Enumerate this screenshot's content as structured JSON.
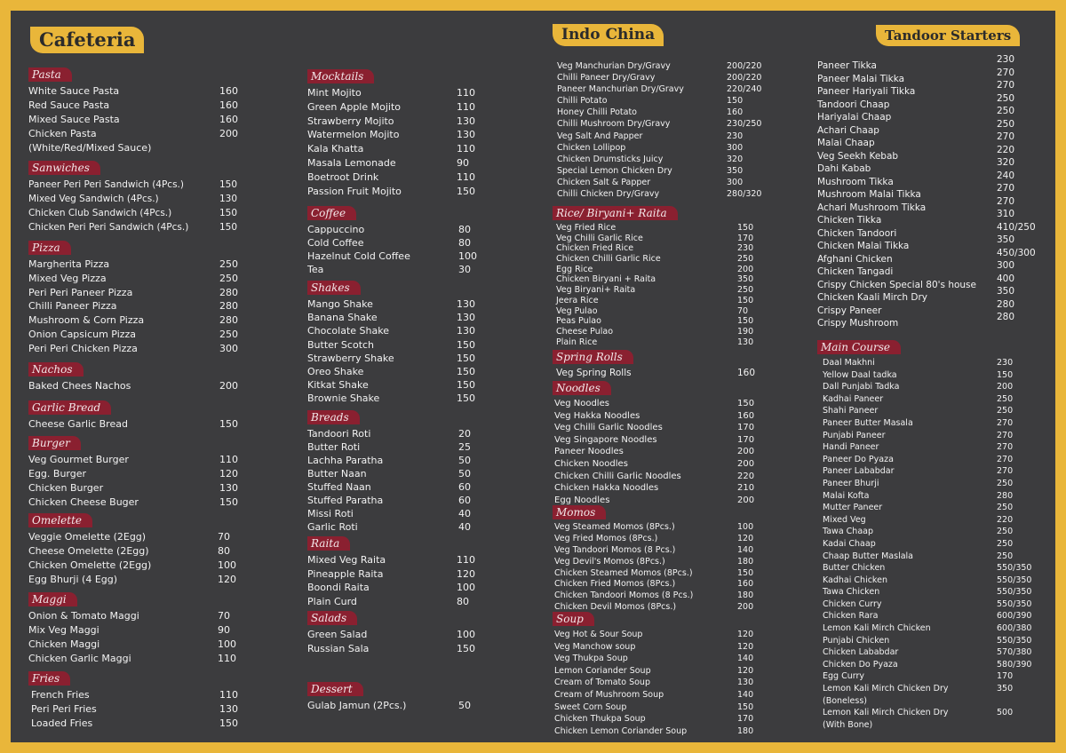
{
  "banners": {
    "cafeteria": "Cafeteria",
    "indo_china": "Indo China",
    "tandoor_starters": "Tandoor Starters"
  },
  "col1": {
    "pasta": {
      "title": "Pasta",
      "items": [
        {
          "name": "White Sauce Pasta",
          "price": "160"
        },
        {
          "name": "Red Sauce Pasta",
          "price": "160"
        },
        {
          "name": "Mixed Sauce Pasta",
          "price": "160"
        },
        {
          "name": "Chicken Pasta",
          "price": "200"
        }
      ],
      "note": "(White/Red/Mixed Sauce)"
    },
    "sandwiches": {
      "title": "Sanwiches",
      "items": [
        {
          "name": "Paneer Peri Peri Sandwich (4Pcs.)",
          "price": "150"
        },
        {
          "name": "Mixed Veg Sandwich (4Pcs.)",
          "price": "130"
        },
        {
          "name": "Chicken Club Sandwich (4Pcs.)",
          "price": "150"
        },
        {
          "name": "Chicken Peri Peri Sandwich (4Pcs.)",
          "price": "150"
        }
      ]
    },
    "pizza": {
      "title": "Pizza",
      "items": [
        {
          "name": "Margherita Pizza",
          "price": "250"
        },
        {
          "name": "Mixed Veg Pizza",
          "price": "250"
        },
        {
          "name": "Peri Peri Paneer Pizza",
          "price": "280"
        },
        {
          "name": "Chilli Paneer Pizza",
          "price": "280"
        },
        {
          "name": "Mushroom & Corn Pizza",
          "price": "280"
        },
        {
          "name": "Onion Capsicum Pizza",
          "price": "250"
        },
        {
          "name": "Peri Peri Chicken Pizza",
          "price": "300"
        }
      ]
    },
    "nachos": {
      "title": "Nachos",
      "items": [
        {
          "name": "Baked Chees Nachos",
          "price": "200"
        }
      ]
    },
    "garlic": {
      "title": "Garlic Bread",
      "items": [
        {
          "name": "Cheese Garlic Bread",
          "price": "150"
        }
      ]
    },
    "burger": {
      "title": "Burger",
      "items": [
        {
          "name": "Veg Gourmet Burger",
          "price": "110"
        },
        {
          "name": "Egg. Burger",
          "price": "120"
        },
        {
          "name": "Chicken Burger",
          "price": "130"
        },
        {
          "name": "Chicken Cheese Buger",
          "price": "150"
        }
      ]
    },
    "omelette": {
      "title": "Omelette",
      "items": [
        {
          "name": "Veggie Omelette (2Egg)",
          "price": "70"
        },
        {
          "name": "Cheese Omelette (2Egg)",
          "price": "80"
        },
        {
          "name": "Chicken Omelette (2Egg)",
          "price": "100"
        },
        {
          "name": "Egg Bhurji (4 Egg)",
          "price": "120"
        }
      ]
    },
    "maggi": {
      "title": "Maggi",
      "items": [
        {
          "name": "Onion & Tomato Maggi",
          "price": "70"
        },
        {
          "name": "Mix Veg Maggi",
          "price": "90"
        },
        {
          "name": "Chicken Maggi",
          "price": "100"
        },
        {
          "name": "Chicken Garlic Maggi",
          "price": "110"
        }
      ]
    },
    "fries": {
      "title": "Fries",
      "items": [
        {
          "name": "French Fries",
          "price": "110"
        },
        {
          "name": "Peri Peri Fries",
          "price": "130"
        },
        {
          "name": "Loaded Fries",
          "price": "150"
        }
      ]
    }
  },
  "col2": {
    "mocktails": {
      "title": "Mocktails",
      "items": [
        {
          "name": "Mint Mojito",
          "price": "110"
        },
        {
          "name": "Green Apple Mojito",
          "price": "110"
        },
        {
          "name": "Strawberry  Mojito",
          "price": "130"
        },
        {
          "name": "Watermelon Mojito",
          "price": "130"
        },
        {
          "name": "Kala Khatta",
          "price": "110"
        },
        {
          "name": "Masala Lemonade",
          "price": "90"
        },
        {
          "name": "Boetroot Drink",
          "price": "110"
        },
        {
          "name": "Passion Fruit Mojito",
          "price": "150"
        }
      ]
    },
    "coffee": {
      "title": "Coffee",
      "items": [
        {
          "name": "Cappuccino",
          "price": "80"
        },
        {
          "name": "Cold Coffee",
          "price": "80"
        },
        {
          "name": "Hazelnut Cold Coffee",
          "price": "100"
        },
        {
          "name": "Tea",
          "price": "30"
        }
      ]
    },
    "shakes": {
      "title": "Shakes",
      "items": [
        {
          "name": "Mango Shake",
          "price": "130"
        },
        {
          "name": "Banana Shake",
          "price": "130"
        },
        {
          "name": "Chocolate Shake",
          "price": "130"
        },
        {
          "name": "Butter Scotch",
          "price": "150"
        },
        {
          "name": "Strawberry Shake",
          "price": "150"
        },
        {
          "name": "Oreo Shake",
          "price": "150"
        },
        {
          "name": "Kitkat Shake",
          "price": "150"
        },
        {
          "name": "Brownie Shake",
          "price": "150"
        }
      ]
    },
    "breads": {
      "title": "Breads",
      "items": [
        {
          "name": "Tandoori Roti",
          "price": "20"
        },
        {
          "name": "Butter Roti",
          "price": "25"
        },
        {
          "name": "Lachha Paratha",
          "price": "50"
        },
        {
          "name": "Butter Naan",
          "price": "50"
        },
        {
          "name": "Stuffed Naan",
          "price": "60"
        },
        {
          "name": "Stuffed Paratha",
          "price": "60"
        },
        {
          "name": "Missi Roti",
          "price": "40"
        },
        {
          "name": "Garlic Roti",
          "price": "40"
        }
      ]
    },
    "raita": {
      "title": "Raita",
      "items": [
        {
          "name": "Mixed Veg Raita",
          "price": "110"
        },
        {
          "name": "Pineapple Raita",
          "price": "120"
        },
        {
          "name": "Boondi Raita",
          "price": "100"
        },
        {
          "name": "Plain Curd",
          "price": "80"
        }
      ]
    },
    "salads": {
      "title": "Salads",
      "items": [
        {
          "name": "Green Salad",
          "price": "100"
        },
        {
          "name": "Russian Sala",
          "price": "150"
        }
      ]
    },
    "dessert": {
      "title": "Dessert",
      "items": [
        {
          "name": "Gulab Jamun (2Pcs.)",
          "price": "50"
        }
      ]
    }
  },
  "col3": {
    "indo": {
      "items": [
        {
          "name": "Veg Manchurian Dry/Gravy",
          "price": "200/220"
        },
        {
          "name": "Chilli Paneer Dry/Gravy",
          "price": "200/220"
        },
        {
          "name": "Paneer Manchurian Dry/Gravy",
          "price": "220/240"
        },
        {
          "name": "Chilli Potato",
          "price": "150"
        },
        {
          "name": "Honey Chilli Potato",
          "price": "160"
        },
        {
          "name": "Chilli Mushroom Dry/Gravy",
          "price": "230/250"
        },
        {
          "name": "Veg Salt And Papper",
          "price": "230"
        },
        {
          "name": "Chicken Lollipop",
          "price": "300"
        },
        {
          "name": "Chicken Drumsticks Juicy",
          "price": "320"
        },
        {
          "name": "Special Lemon Chicken Dry",
          "price": "350"
        },
        {
          "name": "Chicken Salt & Papper",
          "price": "300"
        },
        {
          "name": "Chilli Chicken Dry/Gravy",
          "price": "280/320"
        }
      ]
    },
    "rice": {
      "title": "Rice/ Biryani+ Raita",
      "items": [
        {
          "name": "Veg Fried Rice",
          "price": "150"
        },
        {
          "name": "Veg Chilli Garlic Rice",
          "price": "170"
        },
        {
          "name": "Chicken Fried Rice",
          "price": "230"
        },
        {
          "name": "Chicken Chilli Garlic Rice",
          "price": "250"
        },
        {
          "name": "Egg Rice",
          "price": "200"
        },
        {
          "name": "Chicken Biryani + Raita",
          "price": "350"
        },
        {
          "name": "Veg Biryani+ Raita",
          "price": "250"
        },
        {
          "name": "Jeera Rice",
          "price": "150"
        },
        {
          "name": "Veg Pulao",
          "price": "70"
        },
        {
          "name": "Peas Pulao",
          "price": "150"
        },
        {
          "name": "Cheese Pulao",
          "price": "190"
        },
        {
          "name": "Plain Rice",
          "price": "130"
        }
      ]
    },
    "spring": {
      "title": "Spring Rolls",
      "items": [
        {
          "name": "Veg Spring Rolls",
          "price": "160"
        }
      ]
    },
    "noodles": {
      "title": "Noodles",
      "items": [
        {
          "name": "Veg Noodles",
          "price": "150"
        },
        {
          "name": "Veg Hakka Noodles",
          "price": "160"
        },
        {
          "name": "Veg Chilli Garlic Noodles",
          "price": "170"
        },
        {
          "name": "Veg Singapore Noodles",
          "price": "170"
        },
        {
          "name": "Paneer Noodles",
          "price": "200"
        },
        {
          "name": "Chicken Noodles",
          "price": "200"
        },
        {
          "name": "Chicken Chilli Garlic Noodles",
          "price": "220"
        },
        {
          "name": "Chicken Hakka Noodles",
          "price": "210"
        },
        {
          "name": "Egg Noodles",
          "price": "200"
        }
      ]
    },
    "momos": {
      "title": "Momos",
      "items": [
        {
          "name": "Veg Steamed Momos (8Pcs.)",
          "price": "100"
        },
        {
          "name": "Veg Fried Momos (8Pcs.)",
          "price": "120"
        },
        {
          "name": "Veg Tandoori Momos (8 Pcs.)",
          "price": "140"
        },
        {
          "name": "Veg Devil's Momos (8Pcs.)",
          "price": "180"
        },
        {
          "name": "Chicken Steamed Momos (8Pcs.)",
          "price": "150"
        },
        {
          "name": "Chicken Fried Momos (8Pcs.)",
          "price": "160"
        },
        {
          "name": "Chicken Tandoori Momos (8 Pcs.)",
          "price": "180"
        },
        {
          "name": "Chicken Devil Momos (8Pcs.)",
          "price": "200"
        }
      ]
    },
    "soup": {
      "title": "Soup",
      "items": [
        {
          "name": "Veg Hot & Sour Soup",
          "price": "120"
        },
        {
          "name": "Veg Manchow soup",
          "price": "120"
        },
        {
          "name": "Veg Thukpa Soup",
          "price": "140"
        },
        {
          "name": "Lemon Coriander Soup",
          "price": "120"
        },
        {
          "name": "Cream of Tomato Soup",
          "price": "130"
        },
        {
          "name": "Cream of Mushroom Soup",
          "price": "140"
        },
        {
          "name": "Sweet Corn Soup",
          "price": "150"
        },
        {
          "name": "Chicken Thukpa Soup",
          "price": "170"
        },
        {
          "name": "Chicken Lemon Coriander Soup",
          "price": "180"
        }
      ]
    }
  },
  "col4": {
    "tandoor": {
      "items": [
        {
          "name": "Paneer Tikka",
          "price": "230"
        },
        {
          "name": "Paneer Malai Tikka",
          "price": "270"
        },
        {
          "name": "Paneer Hariyali Tikka",
          "price": "270"
        },
        {
          "name": "Tandoori Chaap",
          "price": "250"
        },
        {
          "name": "Hariyalai Chaap",
          "price": "250"
        },
        {
          "name": "Achari Chaap",
          "price": "250"
        },
        {
          "name": "Malai Chaap",
          "price": "270"
        },
        {
          "name": "Veg Seekh Kebab",
          "price": "220"
        },
        {
          "name": "Dahi Kabab",
          "price": "320"
        },
        {
          "name": "Mushroom Tikka",
          "price": "240"
        },
        {
          "name": "Mushroom Malai Tikka",
          "price": "270"
        },
        {
          "name": "Achari Mushroom Tikka",
          "price": "270"
        },
        {
          "name": "Chicken Tikka",
          "price": "310"
        },
        {
          "name": "Chicken Tandoori",
          "price": "410/250"
        },
        {
          "name": "Chicken Malai Tikka",
          "price": "350"
        },
        {
          "name": "Afghani Chicken",
          "price": "450/300"
        },
        {
          "name": "Chicken Tangadi",
          "price": "300"
        },
        {
          "name": "Crispy Chicken Special 80's house",
          "price": "400"
        },
        {
          "name": "Chicken Kaali Mirch Dry",
          "price": "350"
        },
        {
          "name": "Crispy Paneer",
          "price": "280"
        },
        {
          "name": "Crispy Mushroom",
          "price": "280"
        }
      ]
    },
    "main": {
      "title": "Main Course",
      "items": [
        {
          "name": "Daal Makhni",
          "price": "230"
        },
        {
          "name": "Yellow Daal tadka",
          "price": "150"
        },
        {
          "name": "Dall Punjabi Tadka",
          "price": "200"
        },
        {
          "name": "Kadhai Paneer",
          "price": "250"
        },
        {
          "name": "Shahi Paneer",
          "price": "250"
        },
        {
          "name": "Paneer Butter Masala",
          "price": "270"
        },
        {
          "name": "Punjabi Paneer",
          "price": "270"
        },
        {
          "name": "Handi Paneer",
          "price": "270"
        },
        {
          "name": "Paneer Do Pyaza",
          "price": "270"
        },
        {
          "name": "Paneer Lababdar",
          "price": "270"
        },
        {
          "name": "Paneer Bhurji",
          "price": "250"
        },
        {
          "name": "Malai Kofta",
          "price": "280"
        },
        {
          "name": "Mutter Paneer",
          "price": "250"
        },
        {
          "name": "Mixed Veg",
          "price": "220"
        },
        {
          "name": "Tawa Chaap",
          "price": "250"
        },
        {
          "name": "Kadai Chaap",
          "price": "250"
        },
        {
          "name": "Chaap Butter Maslala",
          "price": "250"
        },
        {
          "name": "Butter Chicken",
          "price": "550/350"
        },
        {
          "name": "Kadhai Chicken",
          "price": "550/350"
        },
        {
          "name": "Tawa Chicken",
          "price": "550/350"
        },
        {
          "name": "Chicken Curry",
          "price": "550/350"
        },
        {
          "name": "Chicken Rara",
          "price": "600/390"
        },
        {
          "name": "Lemon Kali Mirch Chicken",
          "price": "600/380"
        },
        {
          "name": "Punjabi Chicken",
          "price": "550/350"
        },
        {
          "name": "Chicken Lababdar",
          "price": "570/380"
        },
        {
          "name": "Chicken Do Pyaza",
          "price": "580/390"
        },
        {
          "name": "Egg Curry",
          "price": "170"
        },
        {
          "name": "Lemon Kali Mirch Chicken Dry",
          "price": "350"
        }
      ],
      "note1": "(Boneless)",
      "extra": {
        "name": "Lemon Kali Mirch Chicken Dry",
        "price": "500"
      },
      "note2": "(With Bone)"
    }
  }
}
